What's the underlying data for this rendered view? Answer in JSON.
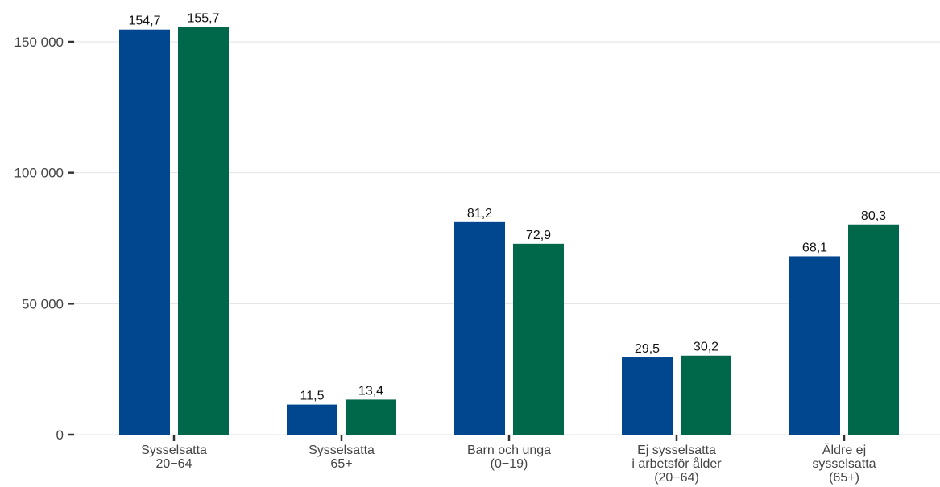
{
  "chart_data": {
    "type": "bar",
    "title": "",
    "xlabel": "",
    "ylabel": "",
    "ylim": [
      0,
      160000
    ],
    "yticks": [
      0,
      50000,
      100000,
      150000
    ],
    "ytick_labels": [
      "0",
      "50 000",
      "100 000",
      "150 000"
    ],
    "grid": true,
    "legend": "none",
    "categories": [
      [
        "Sysselsatta",
        "20−64"
      ],
      [
        "Sysselsatta",
        "65+"
      ],
      [
        "Barn och unga",
        "(0−19)"
      ],
      [
        "Ej sysselsatta",
        "i arbetsför ålder",
        "(20−64)"
      ],
      [
        "Äldre ej",
        "sysselsatta",
        "(65+)"
      ]
    ],
    "series": [
      {
        "color": "#00478f",
        "values": [
          154700,
          11500,
          81200,
          29500,
          68100
        ],
        "labels": [
          "154,7",
          "11,5",
          "81,2",
          "29,5",
          "68,1"
        ]
      },
      {
        "color": "#00684a",
        "values": [
          155700,
          13400,
          72900,
          30200,
          80300
        ],
        "labels": [
          "155,7",
          "13,4",
          "72,9",
          "30,2",
          "80,3"
        ]
      }
    ]
  }
}
